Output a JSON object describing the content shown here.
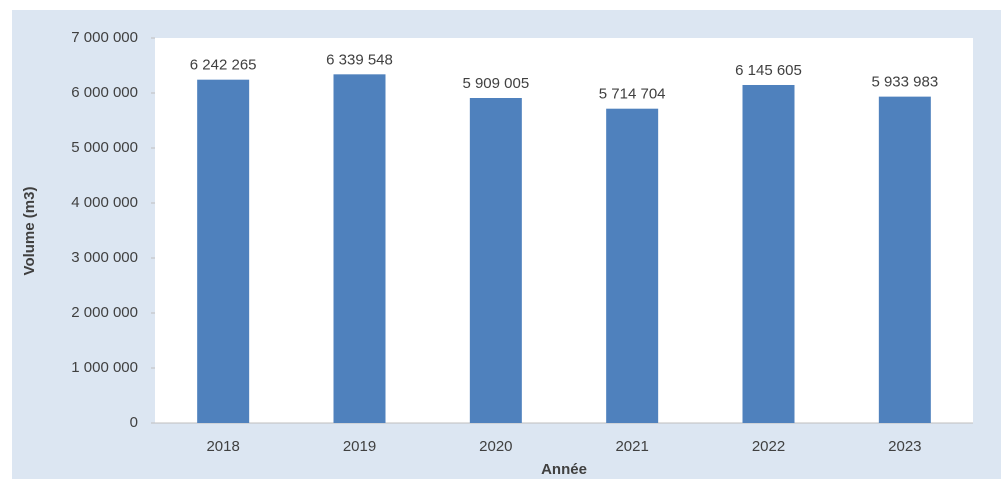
{
  "chart_data": {
    "type": "bar",
    "x_label": "Année",
    "y_label": "Volume (m3)",
    "categories": [
      "2018",
      "2019",
      "2020",
      "2021",
      "2022",
      "2023"
    ],
    "values": [
      6242265,
      6339548,
      5909005,
      5714704,
      6145605,
      5933983
    ],
    "value_labels": [
      "6 242 265",
      "6 339 548",
      "5 909 005",
      "5 714 704",
      "6 145 605",
      "5 933 983"
    ],
    "color": "#4f81bd",
    "ylim": [
      0,
      7000000
    ],
    "yticks": [
      0,
      {
        "value": 1000000,
        "label": "1 000 000"
      },
      {
        "value": 2000000,
        "label": "2 000 000"
      },
      {
        "value": 3000000,
        "label": "3 000 000"
      },
      {
        "value": 4000000,
        "label": "4 000 000"
      },
      {
        "value": 5000000,
        "label": "5 000 000"
      },
      {
        "value": 6000000,
        "label": "6 000 000"
      },
      {
        "value": 7000000,
        "label": "7 000 000"
      }
    ],
    "grid": false
  }
}
